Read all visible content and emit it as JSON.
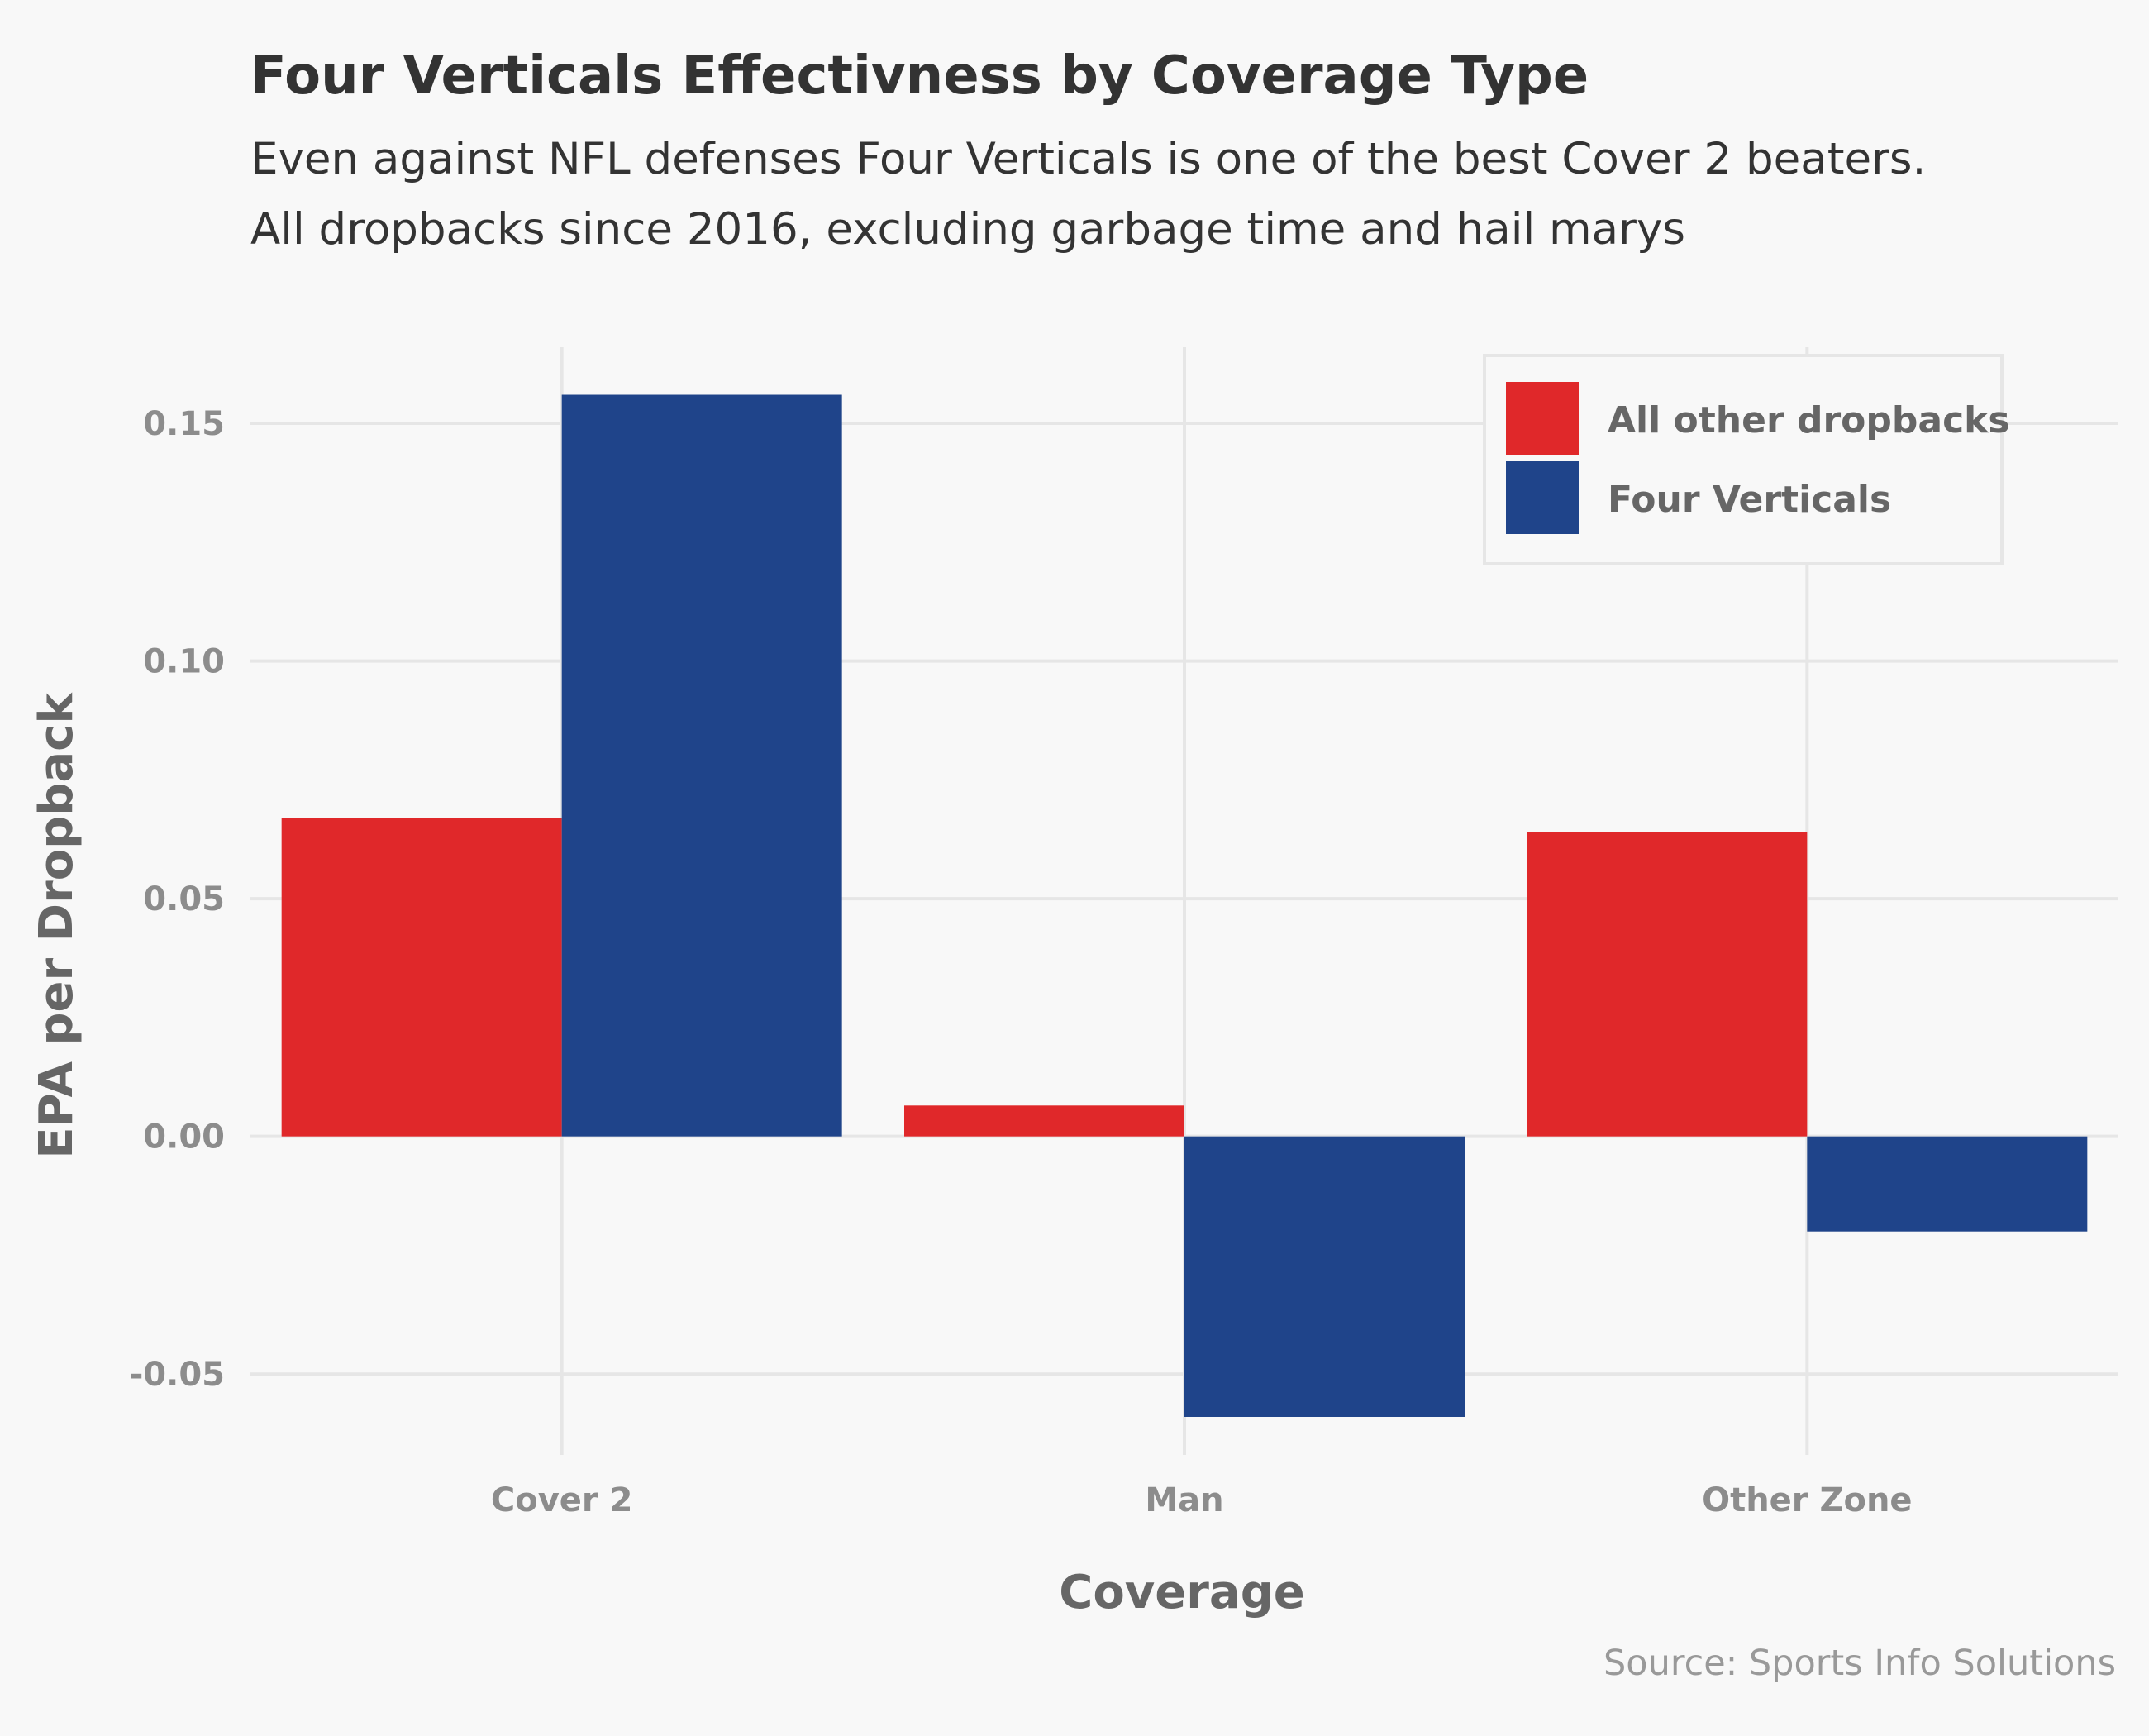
{
  "chart_data": {
    "type": "bar",
    "title": "Four Verticals Effectivness by Coverage Type",
    "subtitle_lines": [
      "Even against NFL defenses Four Verticals is one of the best Cover 2 beaters.",
      "All dropbacks since 2016, excluding garbage time and hail marys"
    ],
    "xlabel": "Coverage",
    "ylabel": "EPA per Dropback",
    "categories": [
      "Cover 2",
      "Man",
      "Other Zone"
    ],
    "series": [
      {
        "name": "All other dropbacks",
        "color": "#e0282a",
        "values": [
          0.067,
          0.0065,
          0.064
        ]
      },
      {
        "name": "Four Verticals",
        "color": "#1f448a",
        "values": [
          0.156,
          -0.059,
          -0.02
        ]
      }
    ],
    "yticks": [
      -0.05,
      0.0,
      0.05,
      0.1,
      0.15
    ],
    "ytick_labels": [
      "-0.05",
      "0.00",
      "0.05",
      "0.10",
      "0.15"
    ],
    "ylim": [
      -0.067,
      0.166
    ],
    "grid": true,
    "legend_position": "top-right",
    "caption": "Source: Sports Info Solutions"
  }
}
